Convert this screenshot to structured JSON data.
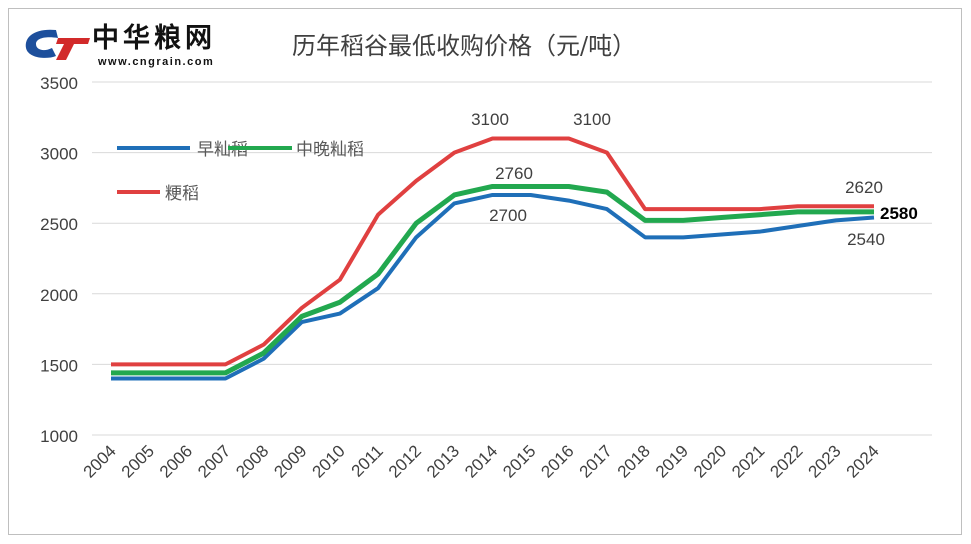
{
  "logo": {
    "name": "中华粮网",
    "url": "www.cngrain.com"
  },
  "chart_data": {
    "type": "line",
    "title": "历年稻谷最低收购价格（元/吨）",
    "xlabel": "",
    "ylabel": "",
    "ylim": [
      1000,
      3500
    ],
    "yticks": [
      1000,
      1500,
      2000,
      2500,
      3000,
      3500
    ],
    "grid": true,
    "legend": "top-left",
    "categories": [
      "2004",
      "2005",
      "2006",
      "2007",
      "2008",
      "2009",
      "2010",
      "2011",
      "2012",
      "2013",
      "2014",
      "2015",
      "2016",
      "2017",
      "2018",
      "2019",
      "2020",
      "2021",
      "2022",
      "2023",
      "2024"
    ],
    "series": [
      {
        "name": "早籼稻",
        "color": "#1f6fb8",
        "values": [
          1400,
          1400,
          1400,
          1400,
          1540,
          1800,
          1860,
          2040,
          2400,
          2640,
          2700,
          2700,
          2660,
          2600,
          2400,
          2400,
          2420,
          2440,
          2480,
          2520,
          2540
        ]
      },
      {
        "name": "中晚籼稻",
        "color": "#22a84f",
        "values": [
          1440,
          1440,
          1440,
          1440,
          1580,
          1840,
          1940,
          2140,
          2500,
          2700,
          2760,
          2760,
          2760,
          2720,
          2520,
          2520,
          2540,
          2560,
          2580,
          2580,
          2580
        ]
      },
      {
        "name": "粳稻",
        "color": "#e04040",
        "values": [
          1500,
          1500,
          1500,
          1500,
          1640,
          1900,
          2100,
          2560,
          2800,
          3000,
          3100,
          3100,
          3100,
          3000,
          2600,
          2600,
          2600,
          2600,
          2620,
          2620,
          2620
        ]
      }
    ],
    "annotations": [
      {
        "text": "3100",
        "x": "2014",
        "series": "粳稻"
      },
      {
        "text": "3100",
        "x": "2016",
        "series": "粳稻"
      },
      {
        "text": "2760",
        "x": "2014",
        "series": "中晚籼稻"
      },
      {
        "text": "2700",
        "x": "2014",
        "series": "早籼稻"
      },
      {
        "text": "2620",
        "x": "2024",
        "series": "粳稻"
      },
      {
        "text": "2580",
        "x": "2024",
        "series": "中晚籼稻",
        "bold": true
      },
      {
        "text": "2540",
        "x": "2024",
        "series": "早籼稻"
      }
    ]
  }
}
